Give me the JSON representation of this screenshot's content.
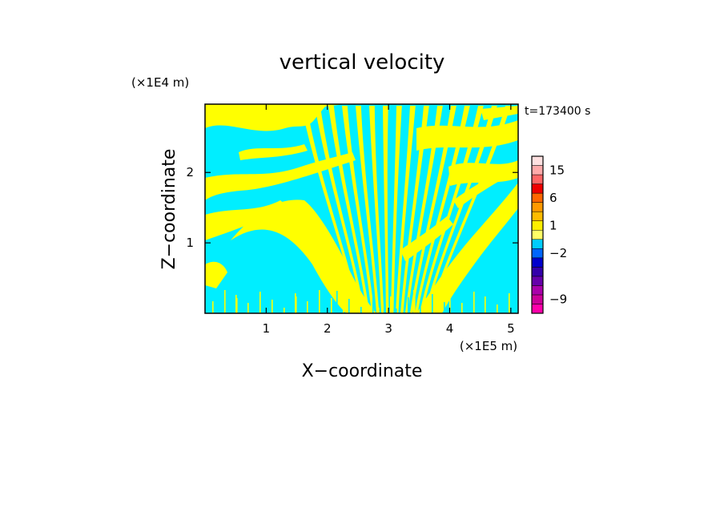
{
  "chart_data": {
    "type": "heatmap",
    "title": "vertical velocity",
    "xlabel": "X−coordinate",
    "ylabel": "Z−coordinate",
    "x_unit": "(×1E5 m)",
    "y_unit": "(×1E4 m)",
    "time_label": "t=173400 s",
    "xlim": [
      0,
      5.12
    ],
    "ylim": [
      0,
      2.97
    ],
    "x_ticks": [
      {
        "value": 1,
        "label": "1"
      },
      {
        "value": 2,
        "label": "2"
      },
      {
        "value": 3,
        "label": "3"
      },
      {
        "value": 4,
        "label": "4"
      },
      {
        "value": 5,
        "label": "5"
      }
    ],
    "y_ticks": [
      {
        "value": 1,
        "label": "1"
      },
      {
        "value": 2,
        "label": "2"
      }
    ],
    "field_colors": {
      "positive": "#ffff00",
      "negative": "#00eeff"
    },
    "colorbar": {
      "levels": [
        {
          "color": "#ff00aa"
        },
        {
          "color": "#cc0099"
        },
        {
          "color": "#aa00aa"
        },
        {
          "color": "#6600aa"
        },
        {
          "color": "#3300aa"
        },
        {
          "color": "#0000cc"
        },
        {
          "color": "#0066ff"
        },
        {
          "color": "#00ccff"
        },
        {
          "color": "#ffff66"
        },
        {
          "color": "#ffee00"
        },
        {
          "color": "#ffbb00"
        },
        {
          "color": "#ff9900"
        },
        {
          "color": "#ff6600"
        },
        {
          "color": "#ee0000"
        },
        {
          "color": "#ff6666"
        },
        {
          "color": "#ffaaaa"
        },
        {
          "color": "#ffe0e0"
        }
      ],
      "labels": [
        {
          "value": "15",
          "level_index": 15
        },
        {
          "value": "6",
          "level_index": 12
        },
        {
          "value": "1",
          "level_index": 9
        },
        {
          "value": "−2",
          "level_index": 6
        },
        {
          "value": "−9",
          "level_index": 1
        }
      ]
    }
  }
}
